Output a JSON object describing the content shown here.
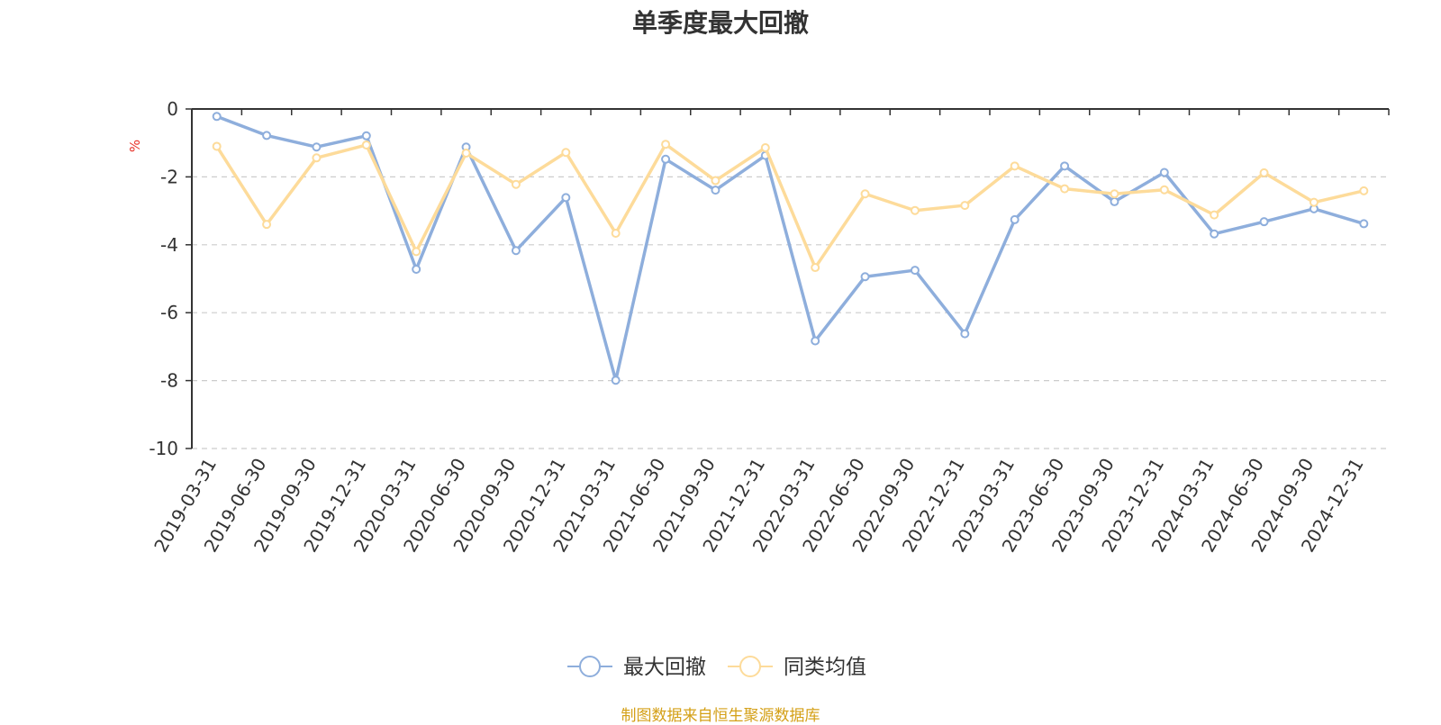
{
  "chart_data": {
    "type": "line",
    "title": "单季度最大回撤",
    "ylabel": "%",
    "xlabel": "",
    "ylim": [
      -10,
      0
    ],
    "yticks": [
      0,
      -2,
      -4,
      -6,
      -8,
      -10
    ],
    "grid": true,
    "legend_position": "bottom-center",
    "categories": [
      "2019-03-31",
      "2019-06-30",
      "2019-09-30",
      "2019-12-31",
      "2020-03-31",
      "2020-06-30",
      "2020-09-30",
      "2020-12-31",
      "2021-03-31",
      "2021-06-30",
      "2021-09-30",
      "2021-12-31",
      "2022-03-31",
      "2022-06-30",
      "2022-09-30",
      "2022-12-31",
      "2023-03-31",
      "2023-06-30",
      "2023-09-30",
      "2023-12-31",
      "2024-03-31",
      "2024-06-30",
      "2024-09-30",
      "2024-12-31"
    ],
    "series": [
      {
        "name": "最大回撤",
        "color": "#8eaedc",
        "values": [
          -0.22,
          -0.78,
          -1.12,
          -0.79,
          -4.72,
          -1.12,
          -4.17,
          -2.61,
          -7.99,
          -1.48,
          -2.39,
          -1.37,
          -6.83,
          -4.94,
          -4.75,
          -6.62,
          -3.26,
          -1.68,
          -2.73,
          -1.87,
          -3.68,
          -3.32,
          -2.94,
          -3.38
        ]
      },
      {
        "name": "同类均值",
        "color": "#fddb9a",
        "values": [
          -1.1,
          -3.4,
          -1.44,
          -1.06,
          -4.2,
          -1.3,
          -2.22,
          -1.28,
          -3.66,
          -1.04,
          -2.11,
          -1.14,
          -4.67,
          -2.5,
          -2.99,
          -2.84,
          -1.68,
          -2.35,
          -2.5,
          -2.38,
          -3.12,
          -1.88,
          -2.75,
          -2.41
        ]
      }
    ]
  },
  "footer": {
    "source": "制图数据来自恒生聚源数据库"
  }
}
